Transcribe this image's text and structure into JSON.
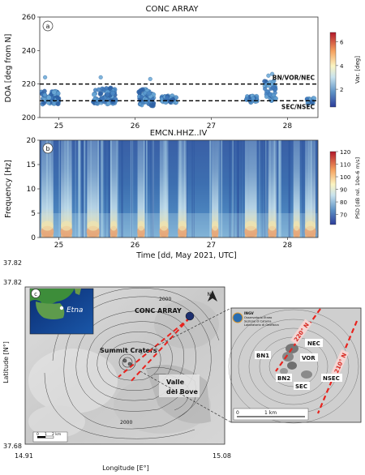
{
  "chart_data": [
    {
      "type": "scatter",
      "panel_label": "a",
      "title": "CONC ARRAY",
      "xlabel": "",
      "ylabel": "DOA  [deg from  N]",
      "xlim": [
        24.75,
        28.4
      ],
      "ylim": [
        200,
        260
      ],
      "xticks": [
        25,
        26,
        27,
        28
      ],
      "yticks": [
        200,
        220,
        240,
        260
      ],
      "reference_lines": [
        {
          "label": "BN/VOR/NEC",
          "y": 220
        },
        {
          "label": "SEC/NSEC",
          "y": 210
        }
      ],
      "colorbar": {
        "label": "Var. [deg]",
        "min": 0.5,
        "max": 6.8,
        "ticks": [
          2,
          4,
          6
        ],
        "colormap": "RdYlBu_r"
      },
      "clusters": [
        {
          "x_start": 24.77,
          "x_end": 25.0,
          "y_center": 212,
          "y_spread": 4,
          "n": 70
        },
        {
          "x_start": 25.45,
          "x_end": 25.75,
          "y_center": 213,
          "y_spread": 5,
          "n": 80
        },
        {
          "x_start": 26.05,
          "x_end": 26.25,
          "y_center": 212,
          "y_spread": 5,
          "n": 70
        },
        {
          "x_start": 26.35,
          "x_end": 26.55,
          "y_center": 211,
          "y_spread": 2,
          "n": 45
        },
        {
          "x_start": 27.45,
          "x_end": 27.6,
          "y_center": 211,
          "y_spread": 2,
          "n": 35
        },
        {
          "x_start": 27.7,
          "x_end": 27.85,
          "y_center": 216,
          "y_spread": 6,
          "n": 40
        },
        {
          "x_start": 28.25,
          "x_end": 28.35,
          "y_center": 210,
          "y_spread": 2,
          "n": 15
        }
      ]
    },
    {
      "type": "heatmap",
      "panel_label": "b",
      "title": "EMCN.HHZ..IV",
      "xlabel": "Time  [dd, May 2021, UTC]",
      "ylabel": "Frequency  [Hz]",
      "xlim": [
        24.75,
        28.4
      ],
      "ylim": [
        0,
        20
      ],
      "xticks": [
        25,
        26,
        27,
        28
      ],
      "yticks": [
        0,
        5,
        10,
        15,
        20
      ],
      "colorbar": {
        "label": "PSD  [dB rel. 10e-6 m/s]",
        "min": 62,
        "max": 120,
        "ticks": [
          70,
          80,
          90,
          100,
          110,
          120
        ],
        "colormap": "RdYlBu_r"
      },
      "high_energy_bursts_day": [
        24.85,
        25.1,
        25.45,
        25.72,
        26.08,
        26.38,
        26.62,
        27.05,
        27.52,
        27.8,
        28.12,
        28.3
      ]
    }
  ],
  "map": {
    "panel_label": "c",
    "inset_label": "Etna",
    "ylabel": "Latitude [N°]",
    "xlabel": "Longitude [E°]",
    "lat_top": "37.82",
    "lat_bottom": "37.68",
    "lon_left": "14.91",
    "lon_right": "15.08",
    "array_label": "CONC ARRAY",
    "craters_label": "Summit Craters",
    "valle_label_1": "Valle",
    "valle_label_2": "del Bove",
    "contour_label_top": "2000",
    "contour_label_bottom": "2000",
    "north_label": "N",
    "scale_labels": [
      "0",
      "1",
      "2 km"
    ]
  },
  "zoom": {
    "logo_lines": [
      "INGV",
      "Osservatorio Etneo",
      "Sezione di Catania",
      "Laboratorio di Geofisica"
    ],
    "direction_labels": [
      "220° N",
      "210° N"
    ],
    "craters": [
      "NEC",
      "BN1",
      "VOR",
      "BN2",
      "SEC",
      "NSEC"
    ],
    "scale_labels": [
      "0",
      "1 km"
    ]
  },
  "colors": {
    "dashed_line": "#000000",
    "direction_lines": "#e8231e",
    "array_marker": "#1c2e6e",
    "dot_fill": "#4a87c5",
    "dot_stroke": "#2b5e96"
  }
}
